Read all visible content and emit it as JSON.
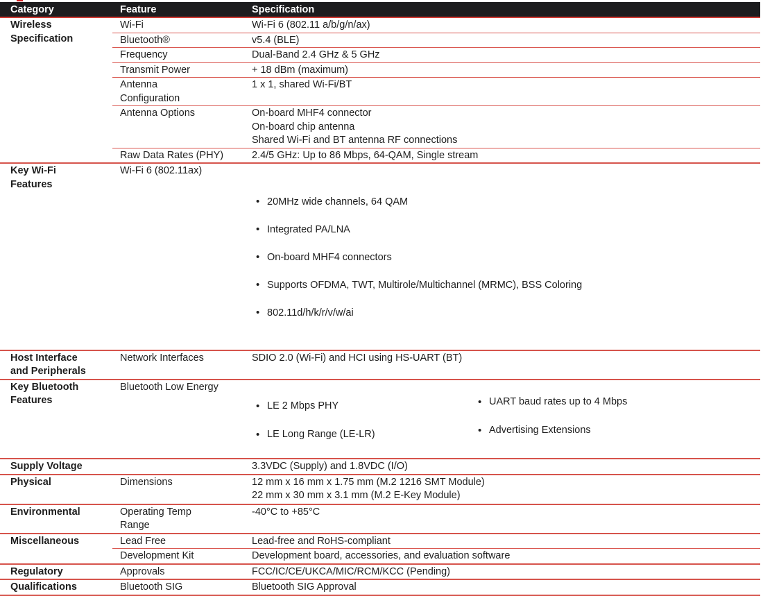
{
  "header": {
    "columns": [
      "Category",
      "Feature",
      "Specification"
    ]
  },
  "colors": {
    "header_bg": "#1c1c1e",
    "header_text": "#ffffff",
    "separator_red": "#d6544c",
    "row_separator_red": "#da5750",
    "body_text": "#1e1e1e"
  },
  "sections": [
    {
      "category": "Wireless\nSpecification",
      "rows": [
        {
          "feature": "Wi-Fi",
          "spec": "Wi-Fi 6 (802.11 a/b/g/n/ax)"
        },
        {
          "feature": "Bluetooth®",
          "spec": "v5.4 (BLE)"
        },
        {
          "feature": "Frequency",
          "spec": "Dual-Band 2.4 GHz & 5 GHz"
        },
        {
          "feature": "Transmit Power",
          "spec": "+ 18 dBm (maximum)"
        },
        {
          "feature": "Antenna\nConfiguration",
          "spec": "1 x 1, shared Wi-Fi/BT"
        },
        {
          "feature": "Antenna Options",
          "spec": "On-board MHF4 connector\nOn-board chip antenna\nShared Wi-Fi and BT antenna RF connections"
        },
        {
          "feature": "Raw Data Rates (PHY)",
          "spec": "2.4/5 GHz: Up to 86 Mbps, 64-QAM, Single stream"
        }
      ]
    },
    {
      "category": "Key Wi-Fi\nFeatures",
      "feature": "Wi-Fi 6 (802.11ax)",
      "bullets": [
        "20MHz wide channels, 64 QAM",
        "Integrated PA/LNA",
        "On-board MHF4 connectors",
        "Supports OFDMA, TWT, Multirole/Multichannel (MRMC), BSS Coloring",
        "802.11d/h/k/r/v/w/ai"
      ]
    },
    {
      "category": "Host Interface\nand Peripherals",
      "feature": "Network Interfaces",
      "spec": "SDIO 2.0 (Wi-Fi) and HCI using HS-UART (BT)"
    },
    {
      "category": "Key Bluetooth\nFeatures",
      "feature": "Bluetooth Low Energy",
      "bullets_left": [
        "LE 2 Mbps PHY",
        "LE Long Range (LE-LR)"
      ],
      "bullets_right": [
        "UART baud rates up to 4 Mbps",
        "Advertising Extensions"
      ]
    },
    {
      "category": "Supply Voltage",
      "feature": "",
      "spec": "3.3VDC (Supply) and 1.8VDC (I/O)"
    },
    {
      "category": "Physical",
      "feature": "Dimensions",
      "spec": "12 mm x 16 mm x 1.75 mm (M.2 1216 SMT Module)\n22 mm x 30 mm x 3.1 mm (M.2 E-Key Module)"
    },
    {
      "category": "Environmental",
      "feature": "Operating Temp\nRange",
      "spec": "-40°C to +85°C"
    },
    {
      "category": "Miscellaneous",
      "rows": [
        {
          "feature": "Lead Free",
          "spec": "Lead-free and RoHS-compliant"
        },
        {
          "feature": "Development Kit",
          "spec": "Development board, accessories, and evaluation software"
        }
      ]
    },
    {
      "category": "Regulatory",
      "feature": "Approvals",
      "spec": "FCC/IC/CE/UKCA/MIC/RCM/KCC (Pending)"
    },
    {
      "category": "Qualifications",
      "feature": "Bluetooth SIG",
      "spec": "Bluetooth SIG Approval"
    }
  ]
}
